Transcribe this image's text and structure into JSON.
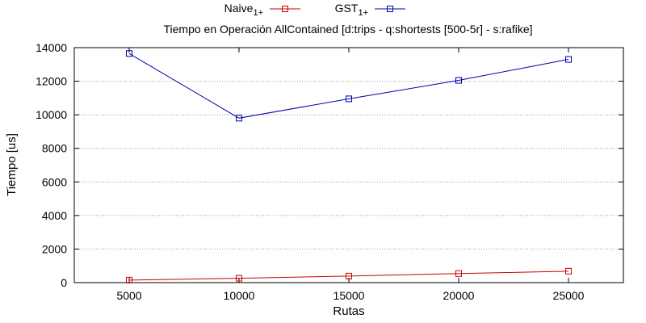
{
  "chart_data": {
    "type": "line",
    "title": "Tiempo en Operación AllContained [d:trips - q:shortests [500-5r] - s:rafike]",
    "xlabel": "Rutas",
    "ylabel": "Tiempo [us]",
    "x": [
      5000,
      10000,
      15000,
      20000,
      25000
    ],
    "xlim": [
      2500,
      27500
    ],
    "ylim": [
      0,
      14000
    ],
    "xticks": [
      "5000",
      "10000",
      "15000",
      "20000",
      "25000"
    ],
    "yticks": [
      "0",
      "2000",
      "4000",
      "6000",
      "8000",
      "10000",
      "12000",
      "14000"
    ],
    "grid": true,
    "legend_position": "top-center",
    "series": [
      {
        "name": "Naive",
        "subscript": "1+",
        "color": "#cc0000",
        "marker": "square",
        "values": [
          150,
          260,
          390,
          540,
          680
        ]
      },
      {
        "name": "GST",
        "subscript": "1+",
        "color": "#0000aa",
        "marker": "square",
        "values": [
          13650,
          9800,
          10950,
          12050,
          13300
        ]
      }
    ]
  }
}
